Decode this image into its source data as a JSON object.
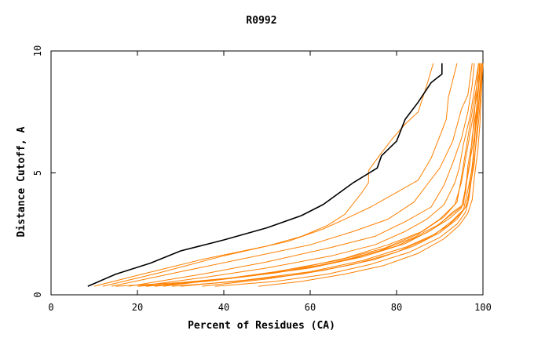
{
  "chart_data": {
    "type": "line",
    "title": "R0992",
    "xlabel": "Percent of Residues (CA)",
    "ylabel": "Distance Cutoff, A",
    "xlim": [
      0,
      100
    ],
    "ylim": [
      0,
      10
    ],
    "xticks": [
      0,
      20,
      40,
      60,
      80,
      100
    ],
    "yticks": [
      0,
      5,
      10
    ],
    "grid": false,
    "legend": "none",
    "colors": {
      "highlight": "#000000",
      "others": "#ff8000"
    },
    "series": [
      {
        "style": "highlight",
        "points": [
          [
            8.5,
            0.35
          ],
          [
            15,
            0.85
          ],
          [
            23,
            1.3
          ],
          [
            30,
            1.8
          ],
          [
            40,
            2.25
          ],
          [
            50,
            2.75
          ],
          [
            58,
            3.25
          ],
          [
            63,
            3.7
          ],
          [
            70,
            4.6
          ],
          [
            75.5,
            5.2
          ],
          [
            76.5,
            5.7
          ],
          [
            80,
            6.3
          ],
          [
            82,
            7.2
          ],
          [
            85,
            7.9
          ],
          [
            88,
            8.7
          ],
          [
            90.5,
            9.05
          ],
          [
            90.5,
            9.5
          ]
        ]
      },
      {
        "style": "other",
        "points": [
          [
            10,
            0.35
          ],
          [
            20,
            0.8
          ],
          [
            35,
            1.45
          ],
          [
            50,
            2.0
          ],
          [
            58,
            2.4
          ],
          [
            64,
            2.85
          ],
          [
            68,
            3.3
          ],
          [
            72,
            4.2
          ],
          [
            73.5,
            4.6
          ],
          [
            73.5,
            5.1
          ],
          [
            76,
            5.7
          ],
          [
            79,
            6.4
          ],
          [
            82,
            7.0
          ],
          [
            85,
            7.5
          ],
          [
            87,
            8.6
          ],
          [
            88.5,
            9.5
          ]
        ]
      },
      {
        "style": "other",
        "points": [
          [
            12,
            0.35
          ],
          [
            25,
            0.9
          ],
          [
            40,
            1.6
          ],
          [
            55,
            2.2
          ],
          [
            63,
            2.7
          ],
          [
            68,
            3.1
          ],
          [
            74,
            3.6
          ],
          [
            80,
            4.2
          ],
          [
            85,
            4.7
          ],
          [
            88,
            5.6
          ],
          [
            90,
            6.5
          ],
          [
            91.5,
            7.2
          ],
          [
            92,
            8.1
          ],
          [
            94,
            9.5
          ]
        ]
      },
      {
        "style": "other",
        "points": [
          [
            14,
            0.35
          ],
          [
            30,
            0.95
          ],
          [
            45,
            1.5
          ],
          [
            60,
            2.05
          ],
          [
            70,
            2.6
          ],
          [
            78,
            3.1
          ],
          [
            84,
            3.8
          ],
          [
            87,
            4.5
          ],
          [
            90,
            5.2
          ],
          [
            93,
            6.3
          ],
          [
            95,
            7.6
          ],
          [
            96.5,
            8.2
          ],
          [
            97.5,
            9.5
          ]
        ]
      },
      {
        "style": "other",
        "points": [
          [
            18,
            0.35
          ],
          [
            35,
            0.85
          ],
          [
            50,
            1.35
          ],
          [
            65,
            1.95
          ],
          [
            75,
            2.4
          ],
          [
            82,
            3.0
          ],
          [
            88,
            3.6
          ],
          [
            91,
            4.5
          ],
          [
            93,
            5.4
          ],
          [
            95,
            6.4
          ],
          [
            96.5,
            7.5
          ],
          [
            97.5,
            8.6
          ],
          [
            98,
            9.5
          ]
        ]
      },
      {
        "style": "other",
        "points": [
          [
            20,
            0.35
          ],
          [
            35,
            0.7
          ],
          [
            50,
            1.1
          ],
          [
            65,
            1.6
          ],
          [
            75,
            2.05
          ],
          [
            82,
            2.6
          ],
          [
            87,
            3.1
          ],
          [
            91,
            3.7
          ],
          [
            93.5,
            4.6
          ],
          [
            94.5,
            5.2
          ],
          [
            95.5,
            6.2
          ],
          [
            97,
            7.3
          ],
          [
            98,
            8.4
          ],
          [
            99,
            9.5
          ]
        ]
      },
      {
        "style": "other",
        "points": [
          [
            22,
            0.35
          ],
          [
            38,
            0.6
          ],
          [
            52,
            0.95
          ],
          [
            66,
            1.4
          ],
          [
            77,
            1.9
          ],
          [
            85,
            2.5
          ],
          [
            90,
            3.1
          ],
          [
            93.5,
            3.7
          ],
          [
            95,
            4.6
          ],
          [
            96,
            5.6
          ],
          [
            97,
            6.6
          ],
          [
            98,
            7.6
          ],
          [
            99,
            8.6
          ],
          [
            99.5,
            9.5
          ]
        ]
      },
      {
        "style": "other",
        "points": [
          [
            24,
            0.35
          ],
          [
            40,
            0.65
          ],
          [
            55,
            1.0
          ],
          [
            68,
            1.5
          ],
          [
            78,
            2.05
          ],
          [
            86,
            2.6
          ],
          [
            91,
            3.2
          ],
          [
            94,
            3.8
          ],
          [
            95,
            4.8
          ],
          [
            96,
            5.9
          ],
          [
            97,
            7.0
          ],
          [
            98,
            8.0
          ],
          [
            99,
            9.0
          ],
          [
            99.5,
            9.5
          ]
        ]
      },
      {
        "style": "other",
        "points": [
          [
            20,
            0.35
          ],
          [
            36,
            0.55
          ],
          [
            52,
            0.9
          ],
          [
            65,
            1.3
          ],
          [
            76,
            1.8
          ],
          [
            84,
            2.35
          ],
          [
            90,
            2.9
          ],
          [
            93,
            3.4
          ],
          [
            95.5,
            3.7
          ],
          [
            96,
            4.5
          ],
          [
            97,
            5.5
          ],
          [
            98,
            6.5
          ],
          [
            98.5,
            7.6
          ],
          [
            99,
            8.7
          ],
          [
            99.5,
            9.5
          ]
        ]
      },
      {
        "style": "other",
        "points": [
          [
            15,
            0.35
          ],
          [
            30,
            0.5
          ],
          [
            45,
            0.75
          ],
          [
            60,
            1.1
          ],
          [
            72,
            1.55
          ],
          [
            82,
            2.1
          ],
          [
            88,
            2.65
          ],
          [
            92,
            3.2
          ],
          [
            95,
            3.6
          ],
          [
            96,
            4.2
          ],
          [
            96.5,
            5.3
          ],
          [
            97.5,
            6.3
          ],
          [
            98,
            7.4
          ],
          [
            98.5,
            8.5
          ],
          [
            99,
            9.5
          ]
        ]
      },
      {
        "style": "other",
        "points": [
          [
            26,
            0.35
          ],
          [
            42,
            0.7
          ],
          [
            58,
            1.05
          ],
          [
            70,
            1.5
          ],
          [
            80,
            2.0
          ],
          [
            87,
            2.55
          ],
          [
            92,
            3.1
          ],
          [
            95,
            3.55
          ],
          [
            96,
            4.4
          ],
          [
            97,
            5.4
          ],
          [
            97.5,
            6.5
          ],
          [
            98.5,
            7.6
          ],
          [
            99,
            8.6
          ],
          [
            99.2,
            9.5
          ]
        ]
      },
      {
        "style": "other",
        "points": [
          [
            30,
            0.35
          ],
          [
            45,
            0.6
          ],
          [
            60,
            0.95
          ],
          [
            72,
            1.4
          ],
          [
            82,
            1.95
          ],
          [
            89,
            2.5
          ],
          [
            93,
            3.05
          ],
          [
            95.5,
            3.5
          ],
          [
            96.5,
            4.3
          ],
          [
            97.5,
            5.2
          ],
          [
            98,
            6.3
          ],
          [
            98.5,
            7.4
          ],
          [
            99,
            8.5
          ],
          [
            99.5,
            9.5
          ]
        ]
      },
      {
        "style": "other",
        "points": [
          [
            35,
            0.35
          ],
          [
            50,
            0.65
          ],
          [
            63,
            1.0
          ],
          [
            75,
            1.45
          ],
          [
            84,
            2.0
          ],
          [
            90,
            2.55
          ],
          [
            94,
            3.1
          ],
          [
            96,
            3.6
          ],
          [
            97,
            4.4
          ],
          [
            98,
            5.4
          ],
          [
            98.5,
            6.6
          ],
          [
            99,
            7.7
          ],
          [
            99.5,
            8.8
          ],
          [
            99.8,
            9.5
          ]
        ]
      },
      {
        "style": "other",
        "points": [
          [
            28,
            0.35
          ],
          [
            43,
            0.55
          ],
          [
            58,
            0.85
          ],
          [
            70,
            1.25
          ],
          [
            80,
            1.75
          ],
          [
            87,
            2.3
          ],
          [
            92,
            2.85
          ],
          [
            95,
            3.35
          ],
          [
            96.5,
            3.75
          ],
          [
            97,
            4.6
          ],
          [
            97.8,
            5.7
          ],
          [
            98.3,
            6.8
          ],
          [
            99,
            7.9
          ],
          [
            99.5,
            9.0
          ],
          [
            99.8,
            9.5
          ]
        ]
      },
      {
        "style": "other",
        "points": [
          [
            38,
            0.35
          ],
          [
            52,
            0.55
          ],
          [
            64,
            0.85
          ],
          [
            74,
            1.25
          ],
          [
            83,
            1.75
          ],
          [
            90,
            2.35
          ],
          [
            94,
            2.9
          ],
          [
            96,
            3.4
          ],
          [
            96.8,
            4.0
          ],
          [
            97.5,
            5.0
          ],
          [
            98.3,
            6.0
          ],
          [
            99,
            7.1
          ],
          [
            99.5,
            8.3
          ],
          [
            99.8,
            9.5
          ]
        ]
      },
      {
        "style": "other",
        "points": [
          [
            48,
            0.35
          ],
          [
            58,
            0.55
          ],
          [
            68,
            0.85
          ],
          [
            77,
            1.2
          ],
          [
            85,
            1.7
          ],
          [
            91,
            2.3
          ],
          [
            94.5,
            2.85
          ],
          [
            96.5,
            3.35
          ],
          [
            97.5,
            3.9
          ],
          [
            98,
            4.8
          ],
          [
            98.8,
            5.9
          ],
          [
            99.3,
            7.0
          ],
          [
            99.6,
            8.2
          ],
          [
            100,
            9.5
          ]
        ]
      }
    ]
  }
}
